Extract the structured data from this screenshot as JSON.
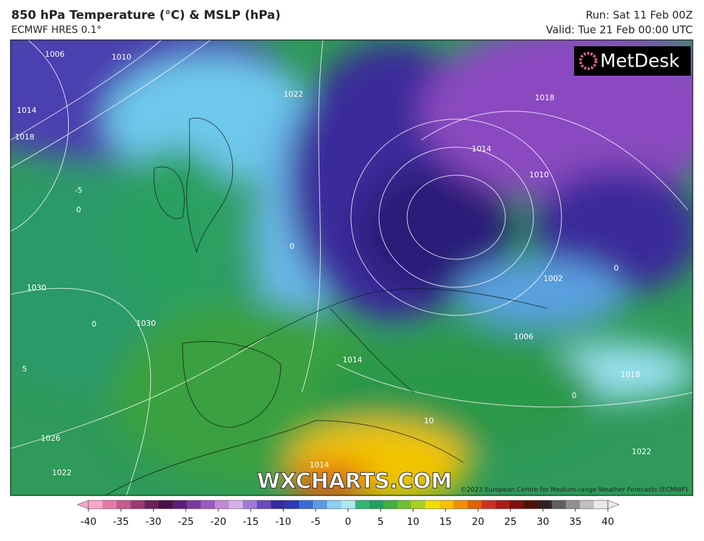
{
  "header": {
    "title": "850 hPa Temperature (°C) & MSLP (hPa)",
    "subtitle": "ECMWF HRES 0.1°",
    "run": "Run: Sat 11 Feb 00Z",
    "valid": "Valid: Tue 21 Feb 00:00 UTC"
  },
  "logo": "MetDesk",
  "watermark": "WXCHARTS.COM",
  "copyright": "©2023 European Centre for Medium-range Weather Forecasts (ECMWF)",
  "contour_labels": [
    "1006",
    "1010",
    "1014",
    "1018",
    "-5",
    "0",
    "1022",
    "1018",
    "1014",
    "1010",
    "0",
    "1030",
    "1030",
    "0",
    "1002",
    "1006",
    "1014",
    "5",
    "0",
    "10",
    "1026",
    "1014",
    "1022",
    "1022",
    "0",
    "1018"
  ],
  "colorbar": {
    "ticks": [
      -40,
      -35,
      -30,
      -25,
      -20,
      -15,
      -10,
      -5,
      0,
      5,
      10,
      15,
      20,
      25,
      30,
      35,
      40
    ],
    "colors": [
      "#f7a8c8",
      "#e579a8",
      "#c85a8c",
      "#9e3a72",
      "#6e1f5a",
      "#4a0f48",
      "#5a1f78",
      "#7a3aa0",
      "#9a5ac0",
      "#c08ad8",
      "#d8b0e8",
      "#a07ad8",
      "#6a4ac0",
      "#3a2aa0",
      "#2a3ab8",
      "#3a6ad8",
      "#5a9ae8",
      "#8ad0f0",
      "#b0e8f0",
      "#30b878",
      "#20a060",
      "#40b040",
      "#70c030",
      "#a8d020",
      "#f0e000",
      "#f8c000",
      "#f09000",
      "#e06000",
      "#d03020",
      "#b01818",
      "#801010",
      "#501008",
      "#302020",
      "#606060",
      "#909090",
      "#c0c0c0",
      "#e8e8e8"
    ]
  }
}
